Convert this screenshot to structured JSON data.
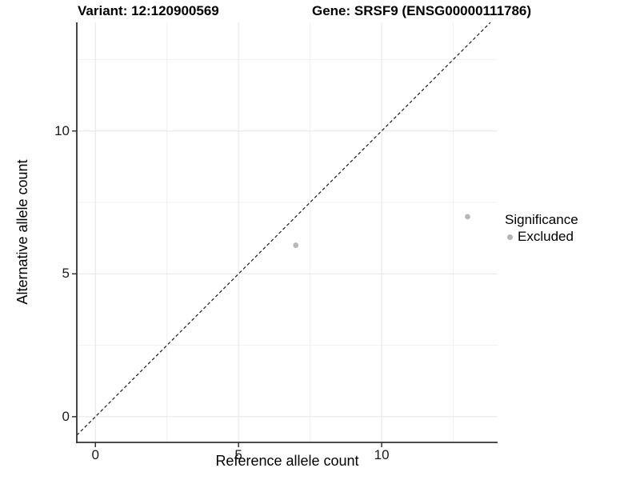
{
  "chart_data": {
    "type": "scatter",
    "title_left": "Variant: 12:120900569",
    "title_right": "Gene: SRSF9 (ENSG00000111786)",
    "xlabel": "Reference allele count",
    "ylabel": "Alternative allele count",
    "xlim": [
      -0.65,
      14.05
    ],
    "ylim": [
      -0.9,
      13.8
    ],
    "x_breaks": [
      0,
      5,
      10
    ],
    "y_breaks": [
      0,
      5,
      10
    ],
    "x_minor_breaks": [
      2.5,
      7.5,
      12.5
    ],
    "y_minor_breaks": [
      2.5,
      7.5,
      12.5
    ],
    "points": [
      {
        "x": 7,
        "y": 6,
        "significance": "Excluded"
      },
      {
        "x": 13,
        "y": 7,
        "significance": "Excluded"
      }
    ],
    "point_color": "#b8b8b8",
    "point_radius": 3.4,
    "identity_line": {
      "style": "dashed",
      "slope": 1,
      "intercept": 0,
      "color": "#1a1a1a"
    },
    "grid": {
      "major_color": "#e5e5e5",
      "minor_color": "#f0f0f0",
      "background": "#ffffff"
    },
    "axis": {
      "line_color": "#333333",
      "tick_color": "#333333"
    },
    "legend": {
      "title": "Significance",
      "position": "right",
      "items": [
        {
          "label": "Excluded",
          "color": "#b3b3b3"
        }
      ]
    }
  }
}
